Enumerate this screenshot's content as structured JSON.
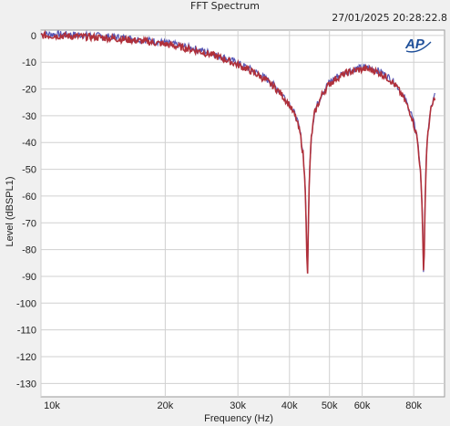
{
  "chart_data": {
    "type": "line",
    "title": "FFT Spectrum",
    "timestamp": "27/01/2025 20:28:22.8",
    "logo_text": "AP",
    "xlabel": "Frequency (Hz)",
    "ylabel": "Level (dBSPL1)",
    "x_scale": "log",
    "xlim": [
      10000,
      95000
    ],
    "ylim": [
      -135,
      2
    ],
    "x_ticks": [
      {
        "value": 10000,
        "label": "10k"
      },
      {
        "value": 20000,
        "label": "20k"
      },
      {
        "value": 30000,
        "label": "30k"
      },
      {
        "value": 40000,
        "label": "40k"
      },
      {
        "value": 50000,
        "label": "50k"
      },
      {
        "value": 60000,
        "label": "60k"
      },
      {
        "value": 80000,
        "label": "80k"
      }
    ],
    "y_ticks": [
      {
        "value": 0,
        "label": "0"
      },
      {
        "value": -10,
        "label": "-10"
      },
      {
        "value": -20,
        "label": "-20"
      },
      {
        "value": -30,
        "label": "-30"
      },
      {
        "value": -40,
        "label": "-40"
      },
      {
        "value": -50,
        "label": "-50"
      },
      {
        "value": -60,
        "label": "-60"
      },
      {
        "value": -70,
        "label": "-70"
      },
      {
        "value": -80,
        "label": "-80"
      },
      {
        "value": -90,
        "label": "-90"
      },
      {
        "value": -100,
        "label": "-100"
      },
      {
        "value": -110,
        "label": "-110"
      },
      {
        "value": -120,
        "label": "-120"
      },
      {
        "value": -130,
        "label": "-130"
      }
    ],
    "grid": true,
    "series": [
      {
        "color": "#b0303a",
        "secondary_color": "#3a3aa8",
        "points": [
          [
            10000,
            0
          ],
          [
            12000,
            -0.3
          ],
          [
            14000,
            -0.8
          ],
          [
            16000,
            -1.5
          ],
          [
            18000,
            -2.3
          ],
          [
            20000,
            -3.3
          ],
          [
            22000,
            -4.5
          ],
          [
            24000,
            -5.8
          ],
          [
            26000,
            -7.3
          ],
          [
            28000,
            -9
          ],
          [
            30000,
            -11
          ],
          [
            32000,
            -13
          ],
          [
            34000,
            -15.3
          ],
          [
            36000,
            -18
          ],
          [
            38000,
            -21.5
          ],
          [
            40000,
            -26
          ],
          [
            41500,
            -31
          ],
          [
            42500,
            -37
          ],
          [
            43200,
            -45
          ],
          [
            43700,
            -58
          ],
          [
            44000,
            -75
          ],
          [
            44200,
            -95
          ],
          [
            44400,
            -75
          ],
          [
            44700,
            -52
          ],
          [
            45200,
            -38
          ],
          [
            46000,
            -29
          ],
          [
            48000,
            -22
          ],
          [
            50000,
            -18
          ],
          [
            52000,
            -16
          ],
          [
            55000,
            -14
          ],
          [
            58000,
            -13
          ],
          [
            61000,
            -12.5
          ],
          [
            64000,
            -13
          ],
          [
            67000,
            -14.5
          ],
          [
            70000,
            -16.5
          ],
          [
            73000,
            -19.5
          ],
          [
            76000,
            -24
          ],
          [
            79000,
            -30
          ],
          [
            81500,
            -38
          ],
          [
            83000,
            -50
          ],
          [
            84000,
            -68
          ],
          [
            84600,
            -93
          ],
          [
            85100,
            -68
          ],
          [
            85700,
            -48
          ],
          [
            86600,
            -36
          ],
          [
            88000,
            -28
          ],
          [
            90000,
            -23
          ]
        ]
      }
    ]
  }
}
